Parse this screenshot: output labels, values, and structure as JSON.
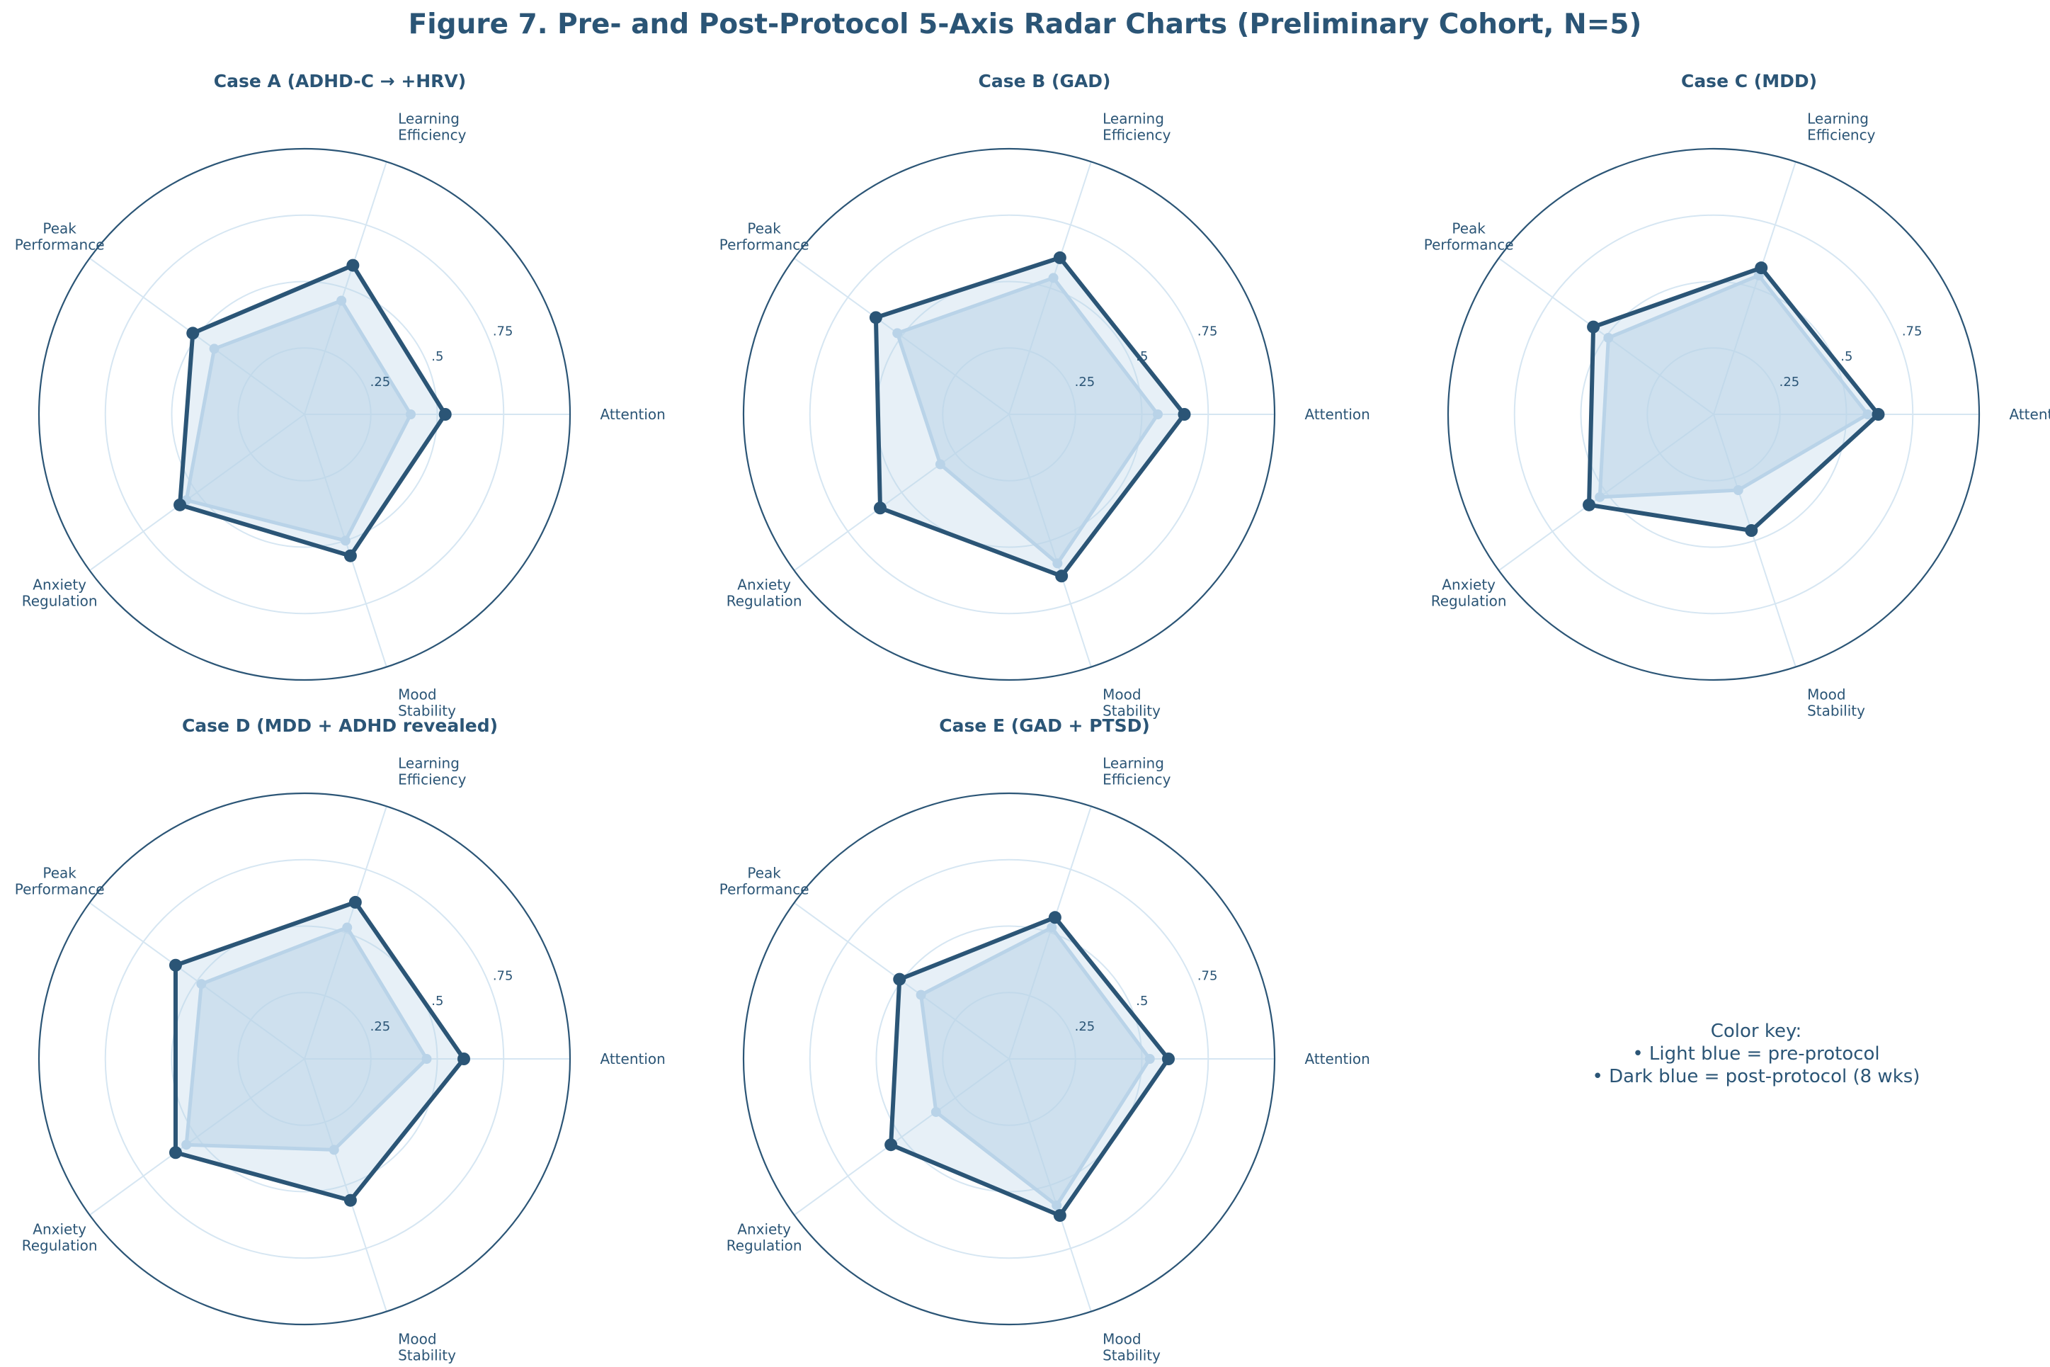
{
  "title": "Figure 7. Pre- and Post-Protocol 5-Axis Radar Charts (Preliminary Cohort, N=5)",
  "colors": {
    "pre": "#b9d3e8",
    "post": "#2b5576",
    "grid": "#d6e6f2",
    "text": "#2b5576"
  },
  "color_key": {
    "heading": "Color key:",
    "pre_line": "• Light blue = pre-protocol",
    "post_line": "• Dark blue = post-protocol (8 wks)"
  },
  "chart_data": [
    {
      "type": "radar",
      "title": "Case A (ADHD-C → +HRV)",
      "axes": [
        "Attention",
        "Learning Efficiency",
        "Peak Performance",
        "Anxiety Regulation",
        "Mood Stability"
      ],
      "rlim": [
        0,
        1
      ],
      "rticks": [
        ".25",
        ".5",
        ".75"
      ],
      "grid": true,
      "series": [
        {
          "values": [
            0.4,
            0.45,
            0.42,
            0.55,
            0.5
          ]
        },
        {
          "values": [
            0.53,
            0.59,
            0.52,
            0.58,
            0.56
          ]
        }
      ]
    },
    {
      "type": "radar",
      "title": "Case B (GAD)",
      "axes": [
        "Attention",
        "Learning Efficiency",
        "Peak Performance",
        "Anxiety Regulation",
        "Mood Stability"
      ],
      "rlim": [
        0,
        1
      ],
      "rticks": [
        ".25",
        ".5",
        ".75"
      ],
      "grid": true,
      "series": [
        {
          "values": [
            0.56,
            0.54,
            0.52,
            0.32,
            0.59
          ]
        },
        {
          "values": [
            0.66,
            0.62,
            0.62,
            0.6,
            0.64
          ]
        }
      ]
    },
    {
      "type": "radar",
      "title": "Case C (MDD)",
      "axes": [
        "Attention",
        "Learning Efficiency",
        "Peak Performance",
        "Anxiety Regulation",
        "Mood Stability"
      ],
      "rlim": [
        0,
        1
      ],
      "rticks": [
        ".25",
        ".5",
        ".75"
      ],
      "grid": true,
      "series": [
        {
          "values": [
            0.58,
            0.55,
            0.49,
            0.53,
            0.3
          ]
        },
        {
          "values": [
            0.62,
            0.58,
            0.56,
            0.58,
            0.46
          ]
        }
      ]
    },
    {
      "type": "radar",
      "title": "Case D (MDD + ADHD revealed)",
      "axes": [
        "Attention",
        "Learning Efficiency",
        "Peak Performance",
        "Anxiety Regulation",
        "Mood Stability"
      ],
      "rlim": [
        0,
        1
      ],
      "rticks": [
        ".25",
        ".5",
        ".75"
      ],
      "grid": true,
      "series": [
        {
          "values": [
            0.46,
            0.52,
            0.48,
            0.55,
            0.36
          ]
        },
        {
          "values": [
            0.6,
            0.62,
            0.6,
            0.6,
            0.56
          ]
        }
      ]
    },
    {
      "type": "radar",
      "title": "Case E (GAD + PTSD)",
      "axes": [
        "Attention",
        "Learning Efficiency",
        "Peak Performance",
        "Anxiety Regulation",
        "Mood Stability"
      ],
      "rlim": [
        0,
        1
      ],
      "rticks": [
        ".25",
        ".5",
        ".75"
      ],
      "grid": true,
      "series": [
        {
          "values": [
            0.53,
            0.52,
            0.41,
            0.34,
            0.58
          ]
        },
        {
          "values": [
            0.6,
            0.56,
            0.51,
            0.55,
            0.62
          ]
        }
      ]
    }
  ]
}
